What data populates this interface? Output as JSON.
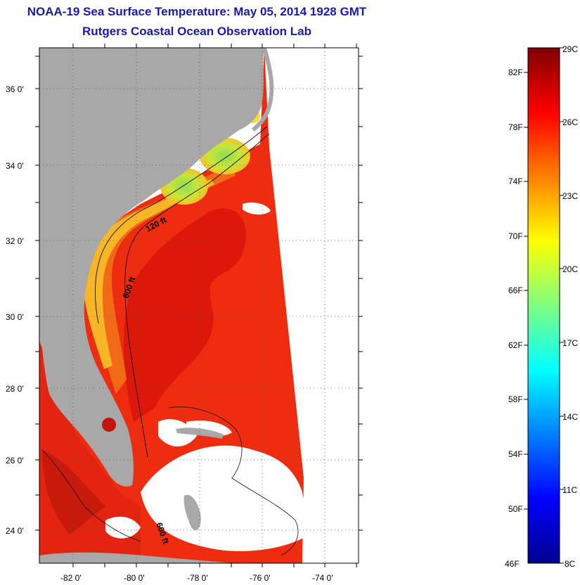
{
  "title": "NOAA-19 Sea Surface Temperature:  May 05, 2014 1928 GMT",
  "subtitle": "Rutgers Coastal Ocean Observation Lab",
  "map": {
    "lon_ticks": [
      "-82 0'",
      "-80 0'",
      "-78 0'",
      "-76 0'",
      "-74 0'"
    ],
    "lat_ticks": [
      "36 0'",
      "34 0'",
      "32 0'",
      "30 0'",
      "28 0'",
      "26 0'",
      "24 0'"
    ],
    "contour_labels": [
      "120 ft",
      "600 ft",
      "600 ft"
    ],
    "colors": {
      "land": "#a8a8a8",
      "cloud": "#ffffff",
      "gulf_stream": "#d8160a",
      "offshore": "#ee2d10",
      "shelf_warm": "#f06a18",
      "shelf_cool": "#f6b626",
      "nearshore_cold": "#bce43a"
    }
  },
  "colorbar": {
    "f_labels": [
      "82F",
      "78F",
      "74F",
      "70F",
      "66F",
      "62F",
      "58F",
      "54F",
      "50F",
      "46F"
    ],
    "c_labels": [
      "29C",
      "26C",
      "23C",
      "20C",
      "17C",
      "14C",
      "11C",
      "8C"
    ],
    "scale": "jet",
    "min_c": 8,
    "max_c": 29
  }
}
